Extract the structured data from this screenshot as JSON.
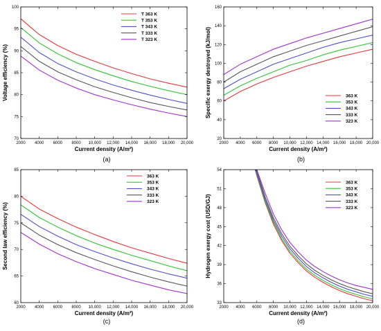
{
  "colors": {
    "363": "#e8353a",
    "353": "#2ec42e",
    "343": "#4d4dcc",
    "333": "#555555",
    "323": "#a030d0"
  },
  "chart_data": [
    {
      "panel_label": "(a)",
      "type": "line",
      "xlabel": "Current density (A/m²)",
      "ylabel": "Voltage efficiency (%)",
      "xlim": [
        2000,
        20000
      ],
      "ylim": [
        70,
        100
      ],
      "xticks": [
        2000,
        4000,
        6000,
        8000,
        10000,
        12000,
        14000,
        16000,
        18000,
        20000
      ],
      "xtick_labels": [
        "2000",
        "4000",
        "6000",
        "8000",
        "10,000",
        "12,000",
        "14,000",
        "16,000",
        "18,000",
        "20,000"
      ],
      "yticks": [
        70,
        75,
        80,
        85,
        90,
        95,
        100
      ],
      "ytick_labels": [
        "70",
        "75",
        "80",
        "85",
        "90",
        "95",
        "100"
      ],
      "legend_position": "top-right",
      "x": [
        2000,
        4000,
        6000,
        8000,
        10000,
        12000,
        14000,
        16000,
        18000,
        20000
      ],
      "series": [
        {
          "name": "T  363 K",
          "key": "363",
          "values": [
            97.3,
            93.7,
            91.2,
            89.2,
            87.6,
            86.1,
            84.8,
            83.6,
            82.6,
            81.7
          ]
        },
        {
          "name": "T  353 K",
          "key": "353",
          "values": [
            95.3,
            91.8,
            89.3,
            87.3,
            85.7,
            84.3,
            83.0,
            81.9,
            80.9,
            80.0
          ]
        },
        {
          "name": "T  343 K",
          "key": "343",
          "values": [
            93.1,
            89.6,
            87.1,
            85.2,
            83.6,
            82.2,
            81.0,
            79.9,
            78.9,
            78.0
          ]
        },
        {
          "name": "T  333 K",
          "key": "333",
          "values": [
            91.0,
            87.6,
            85.2,
            83.4,
            81.8,
            80.5,
            79.3,
            78.2,
            77.3,
            76.5
          ]
        },
        {
          "name": "T  323 K",
          "key": "323",
          "values": [
            88.8,
            85.6,
            83.3,
            81.5,
            80.0,
            78.8,
            77.7,
            76.7,
            75.8,
            75.0
          ]
        }
      ]
    },
    {
      "panel_label": "(b)",
      "type": "line",
      "xlabel": "Current density (A/m²)",
      "ylabel": "Specific exergy destroyed (kJ/mol)",
      "xlim": [
        2000,
        20000
      ],
      "ylim": [
        20,
        160
      ],
      "xticks": [
        2000,
        4000,
        6000,
        8000,
        10000,
        12000,
        14000,
        16000,
        18000,
        20000
      ],
      "xtick_labels": [
        "2000",
        "4000",
        "6000",
        "8000",
        "10,000",
        "12,000",
        "14,000",
        "16,000",
        "18,000",
        "20,000"
      ],
      "yticks": [
        20,
        40,
        60,
        80,
        100,
        120,
        140,
        160
      ],
      "ytick_labels": [
        "20",
        "40",
        "60",
        "80",
        "100",
        "120",
        "140",
        "160"
      ],
      "legend_position": "bottom-right",
      "x": [
        2000,
        4000,
        6000,
        8000,
        10000,
        12000,
        14000,
        16000,
        18000,
        20000
      ],
      "series": [
        {
          "name": "363 K",
          "key": "363",
          "values": [
            60,
            70,
            78,
            85,
            91,
            97,
            102,
            107,
            111,
            115
          ]
        },
        {
          "name": "353 K",
          "key": "353",
          "values": [
            66,
            76,
            84,
            91,
            98,
            103,
            109,
            114,
            118,
            122
          ]
        },
        {
          "name": "343 K",
          "key": "343",
          "values": [
            73,
            83,
            91,
            99,
            105,
            111,
            117,
            122,
            126,
            130
          ]
        },
        {
          "name": "333 K",
          "key": "333",
          "values": [
            80,
            91,
            99,
            107,
            113,
            119,
            124,
            129,
            134,
            139
          ]
        },
        {
          "name": "323 K",
          "key": "323",
          "values": [
            88,
            99,
            107,
            115,
            121,
            127,
            132,
            137,
            142,
            147
          ]
        }
      ]
    },
    {
      "panel_label": "(c)",
      "type": "line",
      "xlabel": "Current density (A/m²)",
      "ylabel": "Second law efficiency (%)",
      "xlim": [
        2000,
        20000
      ],
      "ylim": [
        60,
        85
      ],
      "xticks": [
        2000,
        4000,
        6000,
        8000,
        10000,
        12000,
        14000,
        16000,
        18000,
        20000
      ],
      "xtick_labels": [
        "2000",
        "4000",
        "6000",
        "8000",
        "10,000",
        "12,000",
        "14,000",
        "16,000",
        "18,000",
        "20,000"
      ],
      "yticks": [
        60,
        65,
        70,
        75,
        80,
        85
      ],
      "ytick_labels": [
        "60",
        "65",
        "70",
        "75",
        "80",
        "85"
      ],
      "legend_position": "top-right",
      "x": [
        2000,
        4000,
        6000,
        8000,
        10000,
        12000,
        14000,
        16000,
        18000,
        20000
      ],
      "series": [
        {
          "name": "363 K",
          "key": "363",
          "values": [
            80.0,
            77.6,
            75.8,
            74.2,
            72.8,
            71.5,
            70.3,
            69.3,
            68.3,
            67.4
          ]
        },
        {
          "name": "353 K",
          "key": "353",
          "values": [
            78.4,
            76.0,
            74.2,
            72.6,
            71.2,
            70.0,
            68.9,
            67.9,
            66.9,
            66.0
          ]
        },
        {
          "name": "343 K",
          "key": "343",
          "values": [
            76.6,
            74.3,
            72.5,
            70.9,
            69.6,
            68.4,
            67.3,
            66.3,
            65.4,
            64.6
          ]
        },
        {
          "name": "333 K",
          "key": "333",
          "values": [
            75.0,
            72.7,
            70.9,
            69.4,
            68.1,
            66.9,
            65.8,
            64.8,
            63.9,
            63.1
          ]
        },
        {
          "name": "323 K",
          "key": "323",
          "values": [
            73.2,
            71.0,
            69.2,
            67.7,
            66.4,
            65.3,
            64.2,
            63.3,
            62.4,
            61.7
          ]
        }
      ]
    },
    {
      "panel_label": "(d)",
      "type": "line",
      "xlabel": "Current density (A/m²)",
      "ylabel": "Hydrogen exergy cost (USD/GJ)",
      "xlim": [
        2000,
        20000
      ],
      "ylim": [
        33,
        54
      ],
      "xticks": [
        2000,
        4000,
        6000,
        8000,
        10000,
        12000,
        14000,
        16000,
        18000,
        20000
      ],
      "xtick_labels": [
        "2000",
        "4000",
        "6000",
        "8000",
        "10,000",
        "12,000",
        "14,000",
        "16,000",
        "18,000",
        "20,000"
      ],
      "yticks": [
        33,
        36,
        39,
        42,
        45,
        48,
        51,
        54
      ],
      "ytick_labels": [
        "33",
        "36",
        "39",
        "42",
        "45",
        "48",
        "51",
        "54"
      ],
      "legend_position": "top-right",
      "x": [
        5800,
        6000,
        7000,
        8000,
        9000,
        10000,
        11000,
        12000,
        13000,
        14000,
        15000,
        16000,
        17000,
        18000,
        19000,
        20000
      ],
      "series": [
        {
          "name": "363 K",
          "key": "363",
          "values": [
            54.0,
            53.0,
            48.8,
            45.4,
            42.8,
            40.8,
            39.3,
            38.0,
            37.0,
            36.2,
            35.5,
            34.9,
            34.4,
            34.0,
            33.6,
            33.3
          ]
        },
        {
          "name": "353 K",
          "key": "353",
          "values": [
            54.0,
            53.2,
            49.0,
            45.7,
            43.1,
            41.1,
            39.6,
            38.3,
            37.3,
            36.5,
            35.8,
            35.2,
            34.7,
            34.3,
            33.9,
            33.6
          ]
        },
        {
          "name": "343 K",
          "key": "343",
          "values": [
            54.0,
            53.4,
            49.3,
            46.0,
            43.5,
            41.5,
            40.0,
            38.7,
            37.7,
            36.9,
            36.2,
            35.6,
            35.1,
            34.7,
            34.3,
            34.0
          ]
        },
        {
          "name": "333 K",
          "key": "333",
          "values": [
            54.0,
            53.8,
            49.7,
            46.4,
            43.9,
            41.9,
            40.4,
            39.1,
            38.1,
            37.3,
            36.6,
            36.0,
            35.5,
            35.1,
            34.7,
            34.4
          ]
        },
        {
          "name": "323 K",
          "key": "323",
          "values": [
            54.0,
            54.0,
            50.3,
            47.0,
            44.5,
            42.5,
            41.0,
            39.7,
            38.7,
            37.9,
            37.2,
            36.6,
            36.1,
            35.7,
            35.4,
            35.1
          ]
        }
      ]
    }
  ]
}
